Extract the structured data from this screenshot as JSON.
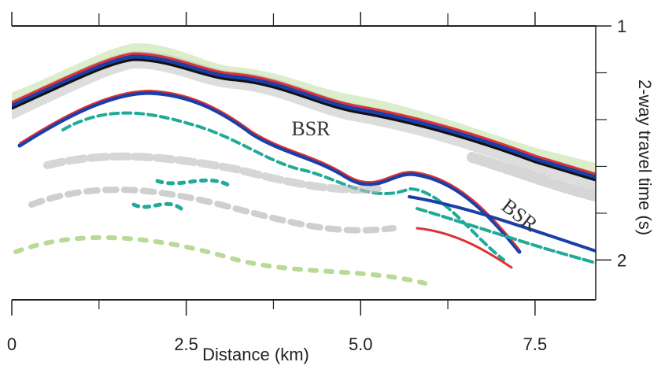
{
  "chart_data": {
    "type": "image",
    "xlabel": "Distance (km)",
    "ylabel": "2-way travel time (s)",
    "xlim": [
      0,
      8.37
    ],
    "xticks": [
      0,
      2.5,
      {
        "value": 5,
        "label": "5.0"
      },
      7.5
    ],
    "x_minor_ticks": [
      1.25,
      3.75,
      6.25
    ],
    "ylim": [
      1,
      2.17
    ],
    "y_reversed": true,
    "yticks": [
      1,
      2
    ],
    "y_minor_ticks": [
      1.2,
      1.4,
      1.6,
      1.8
    ],
    "annotations": [
      "BSR",
      "BSR"
    ]
  }
}
